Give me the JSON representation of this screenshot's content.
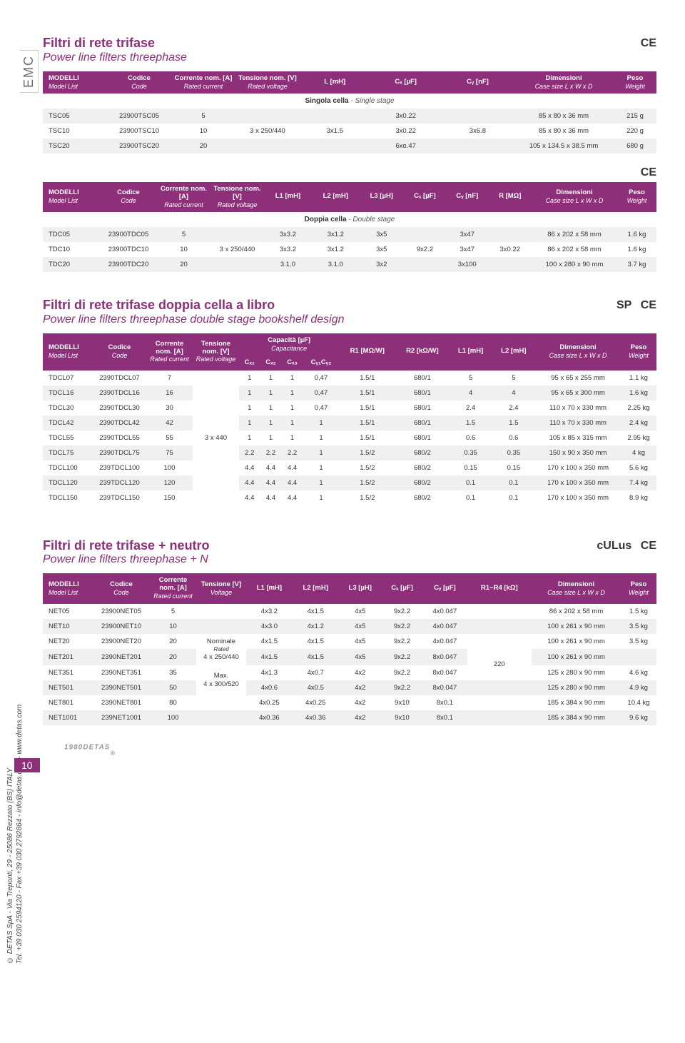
{
  "emc_label": "EMC",
  "ce_mark": "CE",
  "csa_mark": "SP",
  "ul_mark": "cULus",
  "page_number": "10",
  "logo_text": "DETAS",
  "footer_line1": "© DETAS SpA - Via Treponti, 29 - 25086 Rezzato (BS) ITALY",
  "footer_line2": "Tel. +39 030 2594120 - Fax +39 030 2792864 - info@detas.com - www.detas.com",
  "sec1": {
    "title": "Filtri di rete trifase",
    "subtitle": "Power line filters threephase",
    "rowlabel_bold": "Singola cella",
    "rowlabel_italic": " - Single stage",
    "h": {
      "mod": "MODELLI",
      "mod_it": "Model List",
      "code": "Codice",
      "code_it": "Code",
      "curr": "Corrente nom. [A]",
      "curr_it": "Rated current",
      "volt": "Tensione nom. [V]",
      "volt_it": "Rated voltage",
      "l": "L [mH]",
      "cx": "Cₓ [µF]",
      "cy": "Cᵧ [nF]",
      "dim": "Dimensioni",
      "dim_it": "Case size L x W x D",
      "peso": "Peso",
      "peso_it": "Weight"
    },
    "rows": [
      {
        "m": "TSC05",
        "c": "23900TSC05",
        "a": "5",
        "v": "",
        "l": "",
        "cx": "3x0.22",
        "cy": "",
        "dim": "85 x 80 x 36 mm",
        "p": "215 g"
      },
      {
        "m": "TSC10",
        "c": "23900TSC10",
        "a": "10",
        "v": "3 x 250/440",
        "l": "3x1.5",
        "cx": "3x0.22",
        "cy": "3x6.8",
        "dim": "85 x 80 x 36 mm",
        "p": "220 g"
      },
      {
        "m": "TSC20",
        "c": "23900TSC20",
        "a": "20",
        "v": "",
        "l": "",
        "cx": "6xo.47",
        "cy": "",
        "dim": "105 x 134.5 x 38.5 mm",
        "p": "680 g"
      }
    ]
  },
  "sec2": {
    "rowlabel_bold": "Doppia cella",
    "rowlabel_italic": " - Double stage",
    "h": {
      "mod": "MODELLI",
      "mod_it": "Model List",
      "code": "Codice",
      "code_it": "Code",
      "curr": "Corrente nom. [A]",
      "curr_it": "Rated current",
      "volt": "Tensione nom. [V]",
      "volt_it": "Rated voltage",
      "l1": "L1 [mH]",
      "l2": "L2 [mH]",
      "l3": "L3 [µH]",
      "cx": "Cₓ [µF]",
      "cy": "Cᵧ [nF]",
      "r": "R [MΩ]",
      "dim": "Dimensioni",
      "dim_it": "Case size L x W x D",
      "peso": "Peso",
      "peso_it": "Weight"
    },
    "rows": [
      {
        "m": "TDC05",
        "c": "23900TDC05",
        "a": "5",
        "v": "",
        "l1": "3x3.2",
        "l2": "3x1.2",
        "l3": "3x5",
        "cx": "",
        "cy": "3x47",
        "r": "",
        "dim": "86 x 202 x 58 mm",
        "p": "1.6 kg"
      },
      {
        "m": "TDC10",
        "c": "23900TDC10",
        "a": "10",
        "v": "3 x 250/440",
        "l1": "3x3.2",
        "l2": "3x1.2",
        "l3": "3x5",
        "cx": "9x2.2",
        "cy": "3x47",
        "r": "3x0.22",
        "dim": "86 x 202 x 58 mm",
        "p": "1.6 kg"
      },
      {
        "m": "TDC20",
        "c": "23900TDC20",
        "a": "20",
        "v": "",
        "l1": "3.1.0",
        "l2": "3.1.0",
        "l3": "3x2",
        "cx": "",
        "cy": "3x100",
        "r": "",
        "dim": "100 x 280 x 90 mm",
        "p": "3.7 kg"
      }
    ]
  },
  "sec3": {
    "title": "Filtri di rete trifase doppia cella a libro",
    "subtitle": "Power line filters threephase double stage bookshelf design",
    "h": {
      "mod": "MODELLI",
      "mod_it": "Model List",
      "code": "Codice",
      "code_it": "Code",
      "curr": "Corrente nom. [A]",
      "curr_it": "Rated current",
      "volt": "Tensione nom. [V]",
      "volt_it": "Rated voltage",
      "cap": "Capacità [µF]",
      "cap_it": "Capacitance",
      "cx1": "Cₓ₁",
      "cx2": "Cₓ₂",
      "cx3": "Cₓ₃",
      "cy": "Cᵧ₁Cᵧ₂",
      "r1": "R1 [MΩ/W]",
      "r2": "R2 [kΩ/W]",
      "l1": "L1 [mH]",
      "l2": "L2 [mH]",
      "dim": "Dimensioni",
      "dim_it": "Case size L x W x D",
      "peso": "Peso",
      "peso_it": "Weight"
    },
    "shared_v": "3 x 440",
    "rows": [
      {
        "m": "TDCL07",
        "c": "2390TDCL07",
        "a": "7",
        "cx1": "1",
        "cx2": "1",
        "cx3": "1",
        "cy": "0,47",
        "r1": "1.5/1",
        "r2": "680/1",
        "l1": "5",
        "l2": "5",
        "dim": "95 x 65 x 255 mm",
        "p": "1.1 kg"
      },
      {
        "m": "TDCL16",
        "c": "2390TDCL16",
        "a": "16",
        "cx1": "1",
        "cx2": "1",
        "cx3": "1",
        "cy": "0,47",
        "r1": "1.5/1",
        "r2": "680/1",
        "l1": "4",
        "l2": "4",
        "dim": "95 x 65 x 300 mm",
        "p": "1.6 kg"
      },
      {
        "m": "TDCL30",
        "c": "2390TDCL30",
        "a": "30",
        "cx1": "1",
        "cx2": "1",
        "cx3": "1",
        "cy": "0,47",
        "r1": "1.5/1",
        "r2": "680/1",
        "l1": "2.4",
        "l2": "2.4",
        "dim": "110 x 70 x 330 mm",
        "p": "2.25 kg"
      },
      {
        "m": "TDCL42",
        "c": "2390TDCL42",
        "a": "42",
        "cx1": "1",
        "cx2": "1",
        "cx3": "1",
        "cy": "1",
        "r1": "1.5/1",
        "r2": "680/1",
        "l1": "1.5",
        "l2": "1.5",
        "dim": "110 x 70 x 330 mm",
        "p": "2.4 kg"
      },
      {
        "m": "TDCL55",
        "c": "2390TDCL55",
        "a": "55",
        "cx1": "1",
        "cx2": "1",
        "cx3": "1",
        "cy": "1",
        "r1": "1.5/1",
        "r2": "680/1",
        "l1": "0.6",
        "l2": "0.6",
        "dim": "105 x 85 x 315 mm",
        "p": "2.95 kg"
      },
      {
        "m": "TDCL75",
        "c": "2390TDCL75",
        "a": "75",
        "cx1": "2.2",
        "cx2": "2.2",
        "cx3": "2.2",
        "cy": "1",
        "r1": "1.5/2",
        "r2": "680/2",
        "l1": "0.35",
        "l2": "0.35",
        "dim": "150 x 90 x 350 mm",
        "p": "4 kg"
      },
      {
        "m": "TDCL100",
        "c": "239TDCL100",
        "a": "100",
        "cx1": "4.4",
        "cx2": "4.4",
        "cx3": "4.4",
        "cy": "1",
        "r1": "1.5/2",
        "r2": "680/2",
        "l1": "0.15",
        "l2": "0.15",
        "dim": "170 x 100 x 350 mm",
        "p": "5.6 kg"
      },
      {
        "m": "TDCL120",
        "c": "239TDCL120",
        "a": "120",
        "cx1": "4.4",
        "cx2": "4.4",
        "cx3": "4.4",
        "cy": "1",
        "r1": "1.5/2",
        "r2": "680/2",
        "l1": "0.1",
        "l2": "0.1",
        "dim": "170 x 100 x 350 mm",
        "p": "7.4 kg"
      },
      {
        "m": "TDCL150",
        "c": "239TDCL150",
        "a": "150",
        "cx1": "4.4",
        "cx2": "4.4",
        "cx3": "4.4",
        "cy": "1",
        "r1": "1.5/2",
        "r2": "680/2",
        "l1": "0.1",
        "l2": "0.1",
        "dim": "170 x 100 x 350 mm",
        "p": "8.9 kg"
      }
    ]
  },
  "sec4": {
    "title": "Filtri di rete trifase + neutro",
    "subtitle": "Power line filters threephase + N",
    "h": {
      "mod": "MODELLI",
      "mod_it": "Model List",
      "code": "Codice",
      "code_it": "Code",
      "curr": "Corrente nom. [A]",
      "curr_it": "Rated current",
      "volt": "Tensione [V]",
      "volt_it": "Voltage",
      "l1": "L1 [mH]",
      "l2": "L2 [mH]",
      "l3": "L3 [µH]",
      "cx": "Cₓ [µF]",
      "cy": "Cᵧ [µF]",
      "r": "R1~R4 [kΩ]",
      "dim": "Dimensioni",
      "dim_it": "Case size L x W x D",
      "peso": "Peso",
      "peso_it": "Weight"
    },
    "v_label1a": "Nominale",
    "v_label1b": "Rated",
    "v_label1c": "4 x 250/440",
    "v_label2a": "Max.",
    "v_label2b": "4 x 300/520",
    "r_shared": "220",
    "rows": [
      {
        "m": "NET05",
        "c": "23900NET05",
        "a": "5",
        "l1": "4x3.2",
        "l2": "4x1.5",
        "l3": "4x5",
        "cx": "9x2.2",
        "cy": "4x0.047",
        "dim": "86 x 202 x 58 mm",
        "p": "1.5 kg"
      },
      {
        "m": "NET10",
        "c": "23900NET10",
        "a": "10",
        "l1": "4x3.0",
        "l2": "4x1.2",
        "l3": "4x5",
        "cx": "9x2.2",
        "cy": "4x0.047",
        "dim": "100 x 261 x 90 mm",
        "p": "3.5 kg"
      },
      {
        "m": "NET20",
        "c": "23900NET20",
        "a": "20",
        "l1": "4x1.5",
        "l2": "4x1.5",
        "l3": "4x5",
        "cx": "9x2.2",
        "cy": "4x0.047",
        "dim": "100 x 261 x 90 mm",
        "p": "3.5 kg"
      },
      {
        "m": "NET201",
        "c": "2390NET201",
        "a": "20",
        "l1": "4x1.5",
        "l2": "4x1.5",
        "l3": "4x5",
        "cx": "9x2.2",
        "cy": "8x0.047",
        "dim": "100 x 261 x 90 mm",
        "p": ""
      },
      {
        "m": "NET351",
        "c": "2390NET351",
        "a": "35",
        "l1": "4x1.3",
        "l2": "4x0.7",
        "l3": "4x2",
        "cx": "9x2.2",
        "cy": "8x0.047",
        "dim": "125 x 280 x 90 mm",
        "p": "4.6 kg"
      },
      {
        "m": "NET501",
        "c": "2390NET501",
        "a": "50",
        "l1": "4x0.6",
        "l2": "4x0.5",
        "l3": "4x2",
        "cx": "9x2.2",
        "cy": "8x0.047",
        "dim": "125 x 280 x 90 mm",
        "p": "4.9 kg"
      },
      {
        "m": "NET801",
        "c": "2390NET801",
        "a": "80",
        "l1": "4x0.25",
        "l2": "4x0.25",
        "l3": "4x2",
        "cx": "9x10",
        "cy": "8x0.1",
        "dim": "185 x 384 x 90 mm",
        "p": "10.4 kg"
      },
      {
        "m": "NET1001",
        "c": "239NET1001",
        "a": "100",
        "l1": "4x0.36",
        "l2": "4x0.36",
        "l3": "4x2",
        "cx": "9x10",
        "cy": "8x0.1",
        "dim": "185 x 384 x 90 mm",
        "p": "9.6 kg"
      }
    ]
  }
}
